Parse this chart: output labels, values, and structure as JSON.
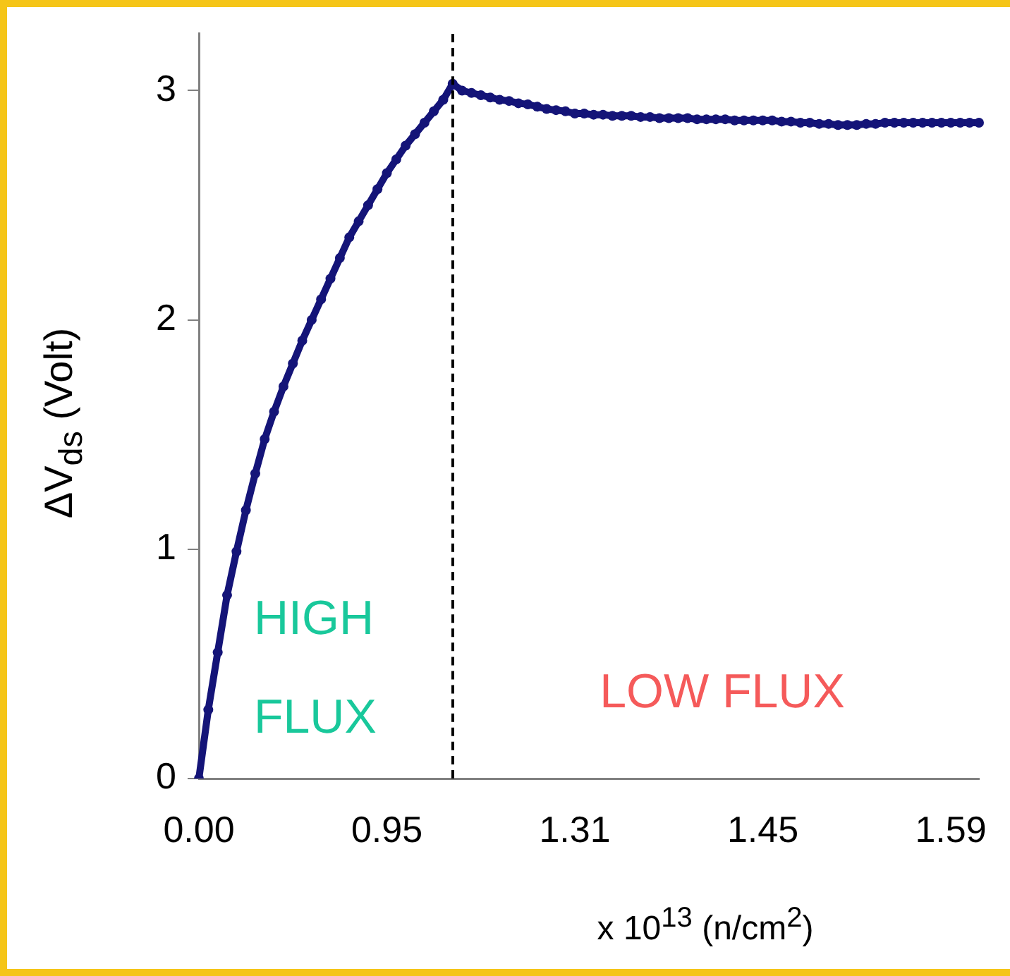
{
  "chart_data": {
    "type": "line",
    "xlabel": "x 10$^{13}$ (n/cm$^{2}$)",
    "ylabel": "ΔV$_{ds}$ (Volt)",
    "categories": [
      "0.00",
      null,
      null,
      null,
      null,
      null,
      null,
      null,
      null,
      null,
      null,
      null,
      null,
      null,
      null,
      null,
      null,
      null,
      null,
      null,
      "0.95",
      null,
      null,
      null,
      null,
      null,
      null,
      null,
      null,
      null,
      null,
      null,
      null,
      null,
      null,
      null,
      null,
      null,
      null,
      null,
      "1.31",
      null,
      null,
      null,
      null,
      null,
      null,
      null,
      null,
      null,
      null,
      null,
      null,
      null,
      null,
      null,
      null,
      null,
      null,
      null,
      "1.45",
      null,
      null,
      null,
      null,
      null,
      null,
      null,
      null,
      null,
      null,
      null,
      null,
      null,
      null,
      null,
      null,
      null,
      null,
      null,
      "1.59",
      null,
      null,
      null
    ],
    "series": [
      {
        "color": "#141478",
        "values": [
          0,
          0.3,
          0.55,
          0.8,
          0.99,
          1.17,
          1.33,
          1.48,
          1.6,
          1.71,
          1.81,
          1.91,
          2.0,
          2.09,
          2.18,
          2.27,
          2.36,
          2.43,
          2.5,
          2.57,
          2.64,
          2.7,
          2.76,
          2.81,
          2.86,
          2.91,
          2.96,
          3.03,
          3.0,
          2.99,
          2.98,
          2.97,
          2.96,
          2.955,
          2.945,
          2.94,
          2.93,
          2.92,
          2.915,
          2.91,
          2.9,
          2.9,
          2.895,
          2.895,
          2.89,
          2.89,
          2.89,
          2.885,
          2.885,
          2.88,
          2.88,
          2.88,
          2.88,
          2.875,
          2.875,
          2.875,
          2.875,
          2.87,
          2.87,
          2.87,
          2.87,
          2.87,
          2.865,
          2.865,
          2.86,
          2.86,
          2.855,
          2.855,
          2.85,
          2.85,
          2.85,
          2.855,
          2.855,
          2.86,
          2.86,
          2.86,
          2.86,
          2.86,
          2.86,
          2.86,
          2.86,
          2.86,
          2.86,
          2.86
        ]
      }
    ],
    "ylim": [
      0,
      3.25
    ],
    "yticks": [
      0,
      1,
      2,
      3
    ],
    "grid": false,
    "legend": false,
    "marker": "circle",
    "annotations": [
      "HIGH FLUX",
      "LOW FLUX"
    ]
  }
}
